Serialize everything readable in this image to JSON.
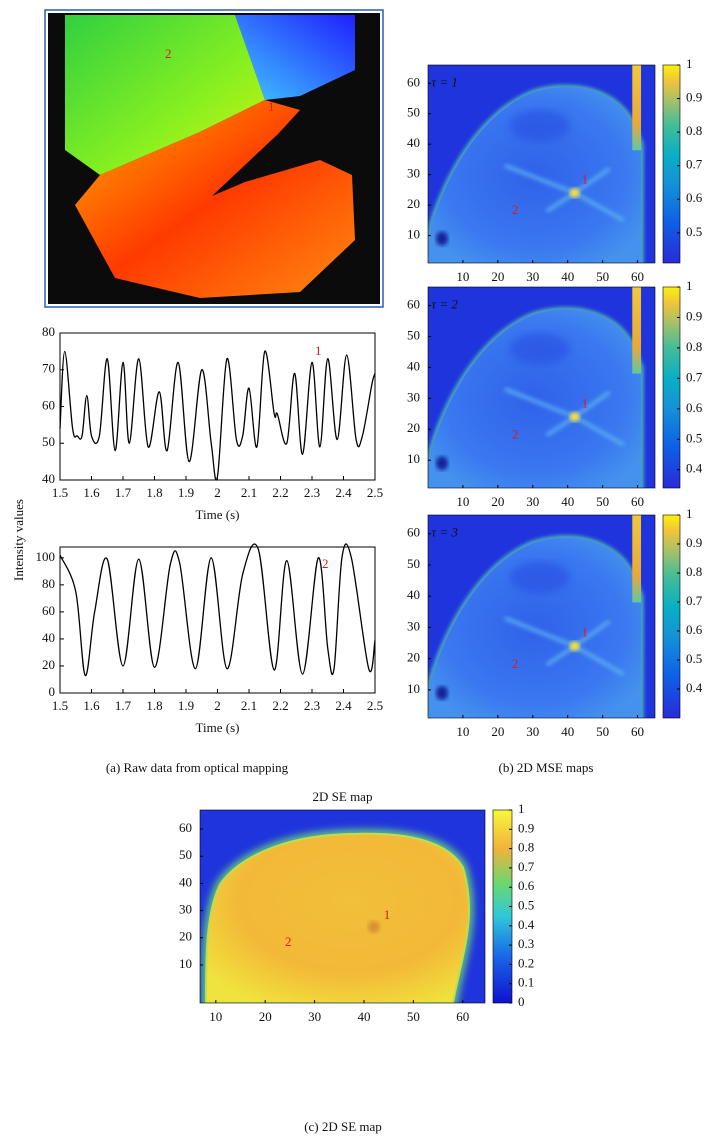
{
  "chart_data": [
    {
      "type": "image",
      "annotations": [
        "2",
        "1"
      ]
    },
    {
      "type": "line",
      "ylabel": "Intensity values",
      "xlabel": "Time (s)",
      "annotation": "1",
      "color": "#000000",
      "x": [
        1.5,
        1.515,
        1.54,
        1.555,
        1.57,
        1.585,
        1.6,
        1.625,
        1.65,
        1.675,
        1.7,
        1.72,
        1.75,
        1.78,
        1.815,
        1.84,
        1.875,
        1.91,
        1.95,
        1.98,
        2.0,
        2.03,
        2.06,
        2.08,
        2.1,
        2.125,
        2.15,
        2.18,
        2.19,
        2.22,
        2.245,
        2.27,
        2.3,
        2.325,
        2.35,
        2.38,
        2.41,
        2.44,
        2.46,
        2.49,
        2.5
      ],
      "values": [
        54,
        75,
        54,
        52,
        52,
        63,
        52,
        52,
        73,
        48,
        72,
        50,
        73,
        49,
        64,
        48,
        72,
        45,
        70,
        50,
        41,
        73,
        51,
        52,
        65,
        49,
        75,
        58,
        58,
        50,
        69,
        47,
        72,
        49,
        73,
        51,
        74,
        51,
        52,
        66,
        69
      ],
      "xlim": [
        1.5,
        2.5
      ],
      "ylim": [
        40,
        80
      ],
      "xticks": [
        1.5,
        1.6,
        1.7,
        1.8,
        1.9,
        2,
        2.1,
        2.2,
        2.3,
        2.4,
        2.5
      ],
      "yticks": [
        40,
        50,
        60,
        70,
        80
      ]
    },
    {
      "type": "line",
      "xlabel": "Time (s)",
      "annotation": "2",
      "color": "#000000",
      "x": [
        1.5,
        1.55,
        1.58,
        1.61,
        1.65,
        1.7,
        1.75,
        1.8,
        1.85,
        1.88,
        1.93,
        1.98,
        2.03,
        2.08,
        2.13,
        2.18,
        2.22,
        2.27,
        2.32,
        2.35,
        2.37,
        2.395,
        2.425,
        2.48,
        2.5
      ],
      "values": [
        102,
        75,
        13,
        60,
        99,
        20,
        99,
        19,
        95,
        96,
        18,
        100,
        18,
        88,
        106,
        17,
        98,
        14,
        100,
        33,
        18,
        100,
        100,
        18,
        39
      ],
      "xlim": [
        1.5,
        2.5
      ],
      "ylim": [
        0,
        108
      ],
      "xticks": [
        1.5,
        1.6,
        1.7,
        1.8,
        1.9,
        2,
        2.1,
        2.2,
        2.3,
        2.4,
        2.5
      ],
      "yticks": [
        0,
        20,
        40,
        60,
        80,
        100
      ]
    },
    {
      "type": "heatmap",
      "colormap": "parula",
      "label": "τ = 1",
      "annotations": [
        "2",
        "1"
      ],
      "xlim": [
        0,
        65
      ],
      "ylim": [
        1,
        66
      ],
      "xticks": [
        10,
        20,
        30,
        40,
        50,
        60
      ],
      "yticks": [
        10,
        20,
        30,
        40,
        50,
        60
      ],
      "clim": [
        0.41,
        1
      ],
      "cticks": [
        0.5,
        0.6,
        0.7,
        0.8,
        0.9,
        1
      ]
    },
    {
      "type": "heatmap",
      "colormap": "parula",
      "label": "τ = 2",
      "annotations": [
        "2",
        "1"
      ],
      "xlim": [
        0,
        65
      ],
      "ylim": [
        1,
        66
      ],
      "xticks": [
        10,
        20,
        30,
        40,
        50,
        60
      ],
      "yticks": [
        10,
        20,
        30,
        40,
        50,
        60
      ],
      "clim": [
        0.34,
        1
      ],
      "cticks": [
        0.4,
        0.5,
        0.6,
        0.7,
        0.8,
        0.9,
        1
      ]
    },
    {
      "type": "heatmap",
      "colormap": "parula",
      "label": "τ = 3",
      "annotations": [
        "2",
        "1"
      ],
      "xlim": [
        0,
        65
      ],
      "ylim": [
        1,
        66
      ],
      "xticks": [
        10,
        20,
        30,
        40,
        50,
        60
      ],
      "yticks": [
        10,
        20,
        30,
        40,
        50,
        60
      ],
      "clim": [
        0.3,
        1
      ],
      "cticks": [
        0.4,
        0.5,
        0.6,
        0.7,
        0.8,
        0.9,
        1
      ]
    },
    {
      "type": "heatmap",
      "colormap": "jet",
      "title": "2D SE map",
      "annotations": [
        "2",
        "1"
      ],
      "xlim": [
        6.8,
        64.5
      ],
      "ylim": [
        -4,
        67
      ],
      "xticks": [
        10,
        20,
        30,
        40,
        50,
        60
      ],
      "yticks": [
        10,
        20,
        30,
        40,
        50,
        60
      ],
      "clim": [
        0,
        1
      ],
      "cticks": [
        0,
        0.1,
        0.2,
        0.3,
        0.4,
        0.5,
        0.6,
        0.7,
        0.8,
        0.9,
        1
      ]
    }
  ],
  "captions": [
    "(a)  Raw data from optical mapping",
    "(b)  2D MSE maps",
    "(c)  2D SE map"
  ]
}
